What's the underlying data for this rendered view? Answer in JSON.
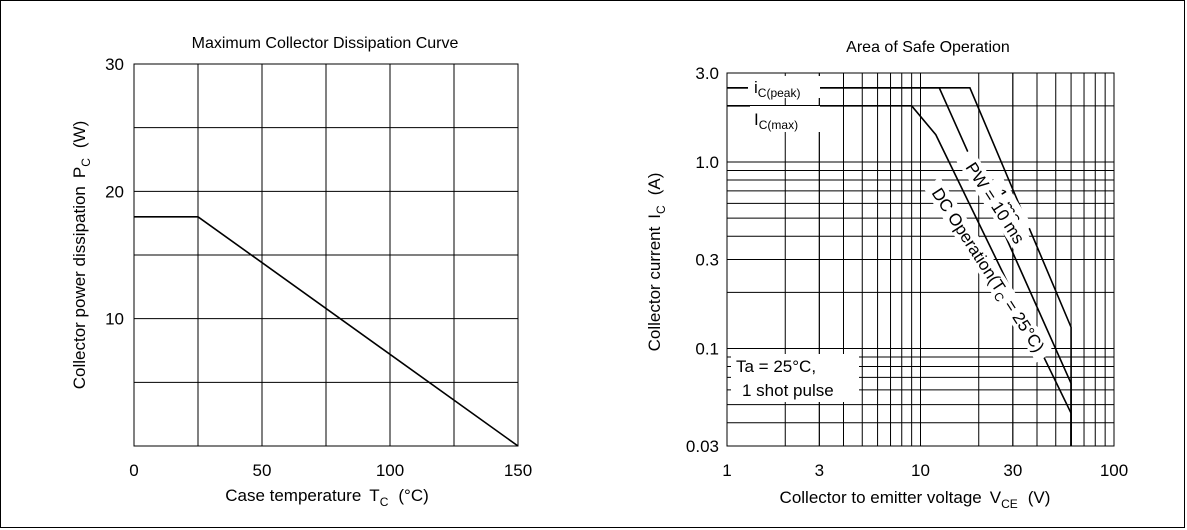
{
  "chart_data": [
    {
      "type": "line",
      "title": "Maximum Collector Dissipation Curve",
      "xlabel": "Case temperature",
      "xlabel_symbol": "T",
      "xlabel_sub": "C",
      "xlabel_unit": "(°C)",
      "ylabel": "Collector power dissipation",
      "ylabel_symbol": "P",
      "ylabel_sub": "C",
      "ylabel_unit": "(W)",
      "xlim": [
        0,
        150
      ],
      "ylim": [
        0,
        30
      ],
      "x_ticks": [
        0,
        50,
        100,
        150
      ],
      "x_tick_labels": [
        "0",
        "50",
        "100",
        "150"
      ],
      "y_ticks": [
        10,
        20,
        30
      ],
      "y_tick_labels": [
        "10",
        "20",
        "30"
      ],
      "x_grid": [
        25,
        50,
        75,
        100,
        125
      ],
      "y_grid": [
        5,
        10,
        15,
        20,
        25
      ],
      "grid": true,
      "series": [
        {
          "x": [
            0,
            25,
            150
          ],
          "y": [
            18,
            18,
            0
          ]
        }
      ]
    },
    {
      "type": "line",
      "title": "Area of Safe Operation",
      "xlabel": "Collector to emitter voltage",
      "xlabel_symbol": "V",
      "xlabel_sub": "CE",
      "xlabel_unit": "(V)",
      "ylabel": "Collector current",
      "ylabel_symbol": "I",
      "ylabel_sub": "C",
      "ylabel_unit": "(A)",
      "x_scale": "log",
      "y_scale": "log",
      "xlim": [
        1,
        100
      ],
      "ylim": [
        0.03,
        3.0
      ],
      "x_ticks": [
        1,
        3,
        10,
        30,
        100
      ],
      "x_tick_labels": [
        "1",
        "3",
        "10",
        "30",
        "100"
      ],
      "y_ticks": [
        0.03,
        0.1,
        0.3,
        1.0,
        3.0
      ],
      "y_tick_labels": [
        "0.03",
        "0.1",
        "0.3",
        "1.0",
        "3.0"
      ],
      "x_grid": [
        2,
        3,
        4,
        5,
        6,
        7,
        8,
        9,
        20,
        30,
        40,
        50,
        60,
        70,
        80,
        90
      ],
      "y_grid": [
        0.04,
        0.05,
        0.06,
        0.07,
        0.08,
        0.09,
        0.2,
        0.3,
        0.4,
        0.5,
        0.6,
        0.7,
        0.8,
        0.9,
        2
      ],
      "grid": true,
      "series": [
        {
          "name": "1 ms",
          "x": [
            1,
            18,
            60,
            60
          ],
          "y": [
            2.5,
            2.5,
            0.13,
            0.03
          ]
        },
        {
          "name": "PW = 10 ms",
          "x": [
            1,
            12.5,
            60,
            60
          ],
          "y": [
            2.5,
            2.5,
            0.065,
            0.03
          ]
        },
        {
          "name": "DC Operation(T",
          "x": [
            1,
            9,
            12,
            60,
            60
          ],
          "y": [
            2.0,
            2.0,
            1.4,
            0.045,
            0.03
          ]
        }
      ],
      "series_label_sub": "C",
      "series_label_tail": " = 25°C)",
      "annotations": {
        "icpeak_main": "i",
        "icpeak_sub": "C(peak)",
        "icmax_main": "I",
        "icmax_sub": "C(max)",
        "condition_line1": "Ta = 25°C,",
        "condition_line2": "1 shot pulse"
      }
    }
  ]
}
